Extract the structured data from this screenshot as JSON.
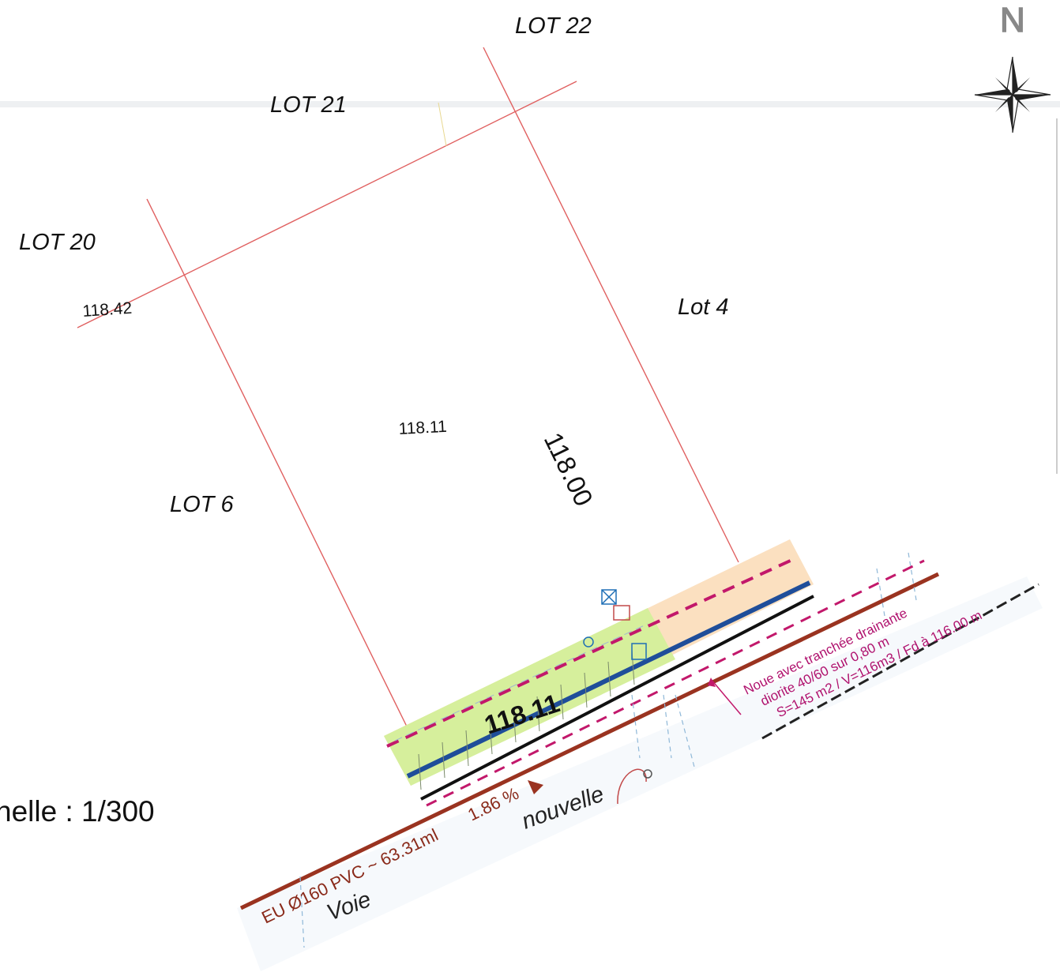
{
  "lots": {
    "lot22": "LOT 22",
    "lot21": "LOT 21",
    "lot20": "LOT 20",
    "lot4": "Lot 4",
    "lot6": "LOT 6"
  },
  "elevations": {
    "e1": "118.42",
    "e2": "118.11",
    "e3": "118.00",
    "e4": "118.11"
  },
  "noue": {
    "line1": "Noue avec tranchée drainante",
    "line2": "diorite 40/60 sur 0,80 m",
    "line3": "S=145 m2 / V=116m3 / Fd à 116.00 m"
  },
  "pipe": {
    "label": "EU Ø160 PVC ~ 63.31ml",
    "slope": "1.86 %"
  },
  "road": {
    "word1": "nouvelle",
    "word2": "Voie"
  },
  "scale_text": "helle : 1/300",
  "north_letter": "N",
  "colors": {
    "parcel_line": "#e06060",
    "pipe": "#9a3320",
    "noue_text": "#b0126e",
    "drain_blue": "#1f4e9a",
    "swale_green": "#d6ef9c",
    "swale_orange": "#fbe0c0"
  }
}
